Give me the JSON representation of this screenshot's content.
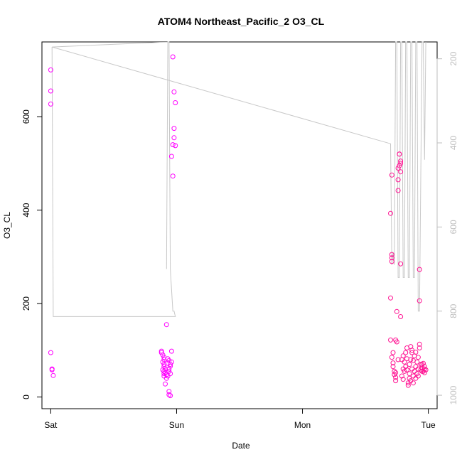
{
  "chart_data": {
    "type": "scatter",
    "title": "ATOM4 Northeast_Pacific_2 O3_CL",
    "xlabel": "Date",
    "ylabel": "O3_CL",
    "x_ticks": [
      "Sat",
      "Sun",
      "Mon",
      "Tue"
    ],
    "xlim": [
      -0.07,
      3.07
    ],
    "ylim": [
      -25,
      760
    ],
    "y_ticks": [
      0,
      200,
      400,
      600
    ],
    "y2_ticks": [
      200,
      400,
      600,
      800,
      1000
    ],
    "y2lim": [
      1032,
      160
    ],
    "y2_color": "#bebebe",
    "grid": false,
    "legend": "none",
    "series": [
      {
        "kind": "points",
        "color": "#ff00ff",
        "points": [
          [
            0.0,
            700
          ],
          [
            0.0,
            655
          ],
          [
            0.0,
            627
          ],
          [
            0.0,
            95
          ],
          [
            0.01,
            60
          ],
          [
            0.01,
            58
          ],
          [
            0.02,
            46
          ],
          [
            0.88,
            98
          ],
          [
            0.88,
            95
          ],
          [
            0.89,
            90
          ],
          [
            0.9,
            85
          ],
          [
            0.9,
            80
          ],
          [
            0.89,
            75
          ],
          [
            0.9,
            70
          ],
          [
            0.9,
            65
          ],
          [
            0.91,
            60
          ],
          [
            0.89,
            58
          ],
          [
            0.9,
            55
          ],
          [
            0.91,
            52
          ],
          [
            0.9,
            50
          ],
          [
            0.92,
            48
          ],
          [
            0.9,
            45
          ],
          [
            0.92,
            40
          ],
          [
            0.91,
            28
          ],
          [
            0.92,
            155
          ],
          [
            0.93,
            82
          ],
          [
            0.94,
            78
          ],
          [
            0.93,
            72
          ],
          [
            0.95,
            70
          ],
          [
            0.95,
            66
          ],
          [
            0.94,
            60
          ],
          [
            0.94,
            55
          ],
          [
            0.95,
            50
          ],
          [
            0.93,
            45
          ],
          [
            0.94,
            12
          ],
          [
            0.94,
            5
          ],
          [
            0.95,
            3
          ],
          [
            0.96,
            98
          ],
          [
            0.96,
            75
          ],
          [
            0.96,
            515
          ],
          [
            0.97,
            473
          ],
          [
            0.97,
            540
          ],
          [
            0.98,
            555
          ],
          [
            0.98,
            575
          ],
          [
            0.98,
            653
          ],
          [
            0.99,
            630
          ],
          [
            0.97,
            728
          ],
          [
            0.99,
            538
          ]
        ]
      },
      {
        "kind": "points",
        "color": "#ff1493",
        "points": [
          [
            2.7,
            393
          ],
          [
            2.71,
            475
          ],
          [
            2.7,
            212
          ],
          [
            2.71,
            305
          ],
          [
            2.71,
            298
          ],
          [
            2.71,
            290
          ],
          [
            2.7,
            122
          ],
          [
            2.71,
            85
          ],
          [
            2.72,
            95
          ],
          [
            2.72,
            65
          ],
          [
            2.73,
            55
          ],
          [
            2.73,
            48
          ],
          [
            2.74,
            42
          ],
          [
            2.74,
            52
          ],
          [
            2.74,
            122
          ],
          [
            2.75,
            118
          ],
          [
            2.75,
            183
          ],
          [
            2.76,
            442
          ],
          [
            2.76,
            465
          ],
          [
            2.76,
            490
          ],
          [
            2.77,
            495
          ],
          [
            2.77,
            520
          ],
          [
            2.77,
            520
          ],
          [
            2.78,
            505
          ],
          [
            2.78,
            500
          ],
          [
            2.78,
            482
          ],
          [
            2.78,
            285
          ],
          [
            2.78,
            172
          ],
          [
            2.79,
            80
          ],
          [
            2.79,
            45
          ],
          [
            2.8,
            60
          ],
          [
            2.8,
            38
          ],
          [
            2.81,
            55
          ],
          [
            2.81,
            75
          ],
          [
            2.82,
            95
          ],
          [
            2.82,
            65
          ],
          [
            2.83,
            82
          ],
          [
            2.83,
            58
          ],
          [
            2.84,
            30
          ],
          [
            2.84,
            25
          ],
          [
            2.85,
            50
          ],
          [
            2.85,
            70
          ],
          [
            2.86,
            108
          ],
          [
            2.86,
            80
          ],
          [
            2.86,
            35
          ],
          [
            2.87,
            95
          ],
          [
            2.87,
            60
          ],
          [
            2.88,
            78
          ],
          [
            2.88,
            45
          ],
          [
            2.89,
            55
          ],
          [
            2.89,
            88
          ],
          [
            2.9,
            65
          ],
          [
            2.9,
            40
          ],
          [
            2.91,
            75
          ],
          [
            2.91,
            50
          ],
          [
            2.92,
            60
          ],
          [
            2.92,
            85
          ],
          [
            2.93,
            113
          ],
          [
            2.93,
            105
          ],
          [
            2.94,
            70
          ],
          [
            2.94,
            58
          ],
          [
            2.95,
            62
          ],
          [
            2.95,
            55
          ],
          [
            2.96,
            72
          ],
          [
            2.96,
            55
          ],
          [
            2.97,
            65
          ],
          [
            2.97,
            52
          ],
          [
            2.98,
            58
          ],
          [
            2.93,
            273
          ],
          [
            2.93,
            206
          ],
          [
            2.72,
            73
          ],
          [
            2.74,
            35
          ],
          [
            2.76,
            80
          ],
          [
            2.8,
            88
          ],
          [
            2.83,
            105
          ],
          [
            2.85,
            40
          ],
          [
            2.88,
            30
          ],
          [
            2.9,
            96
          ],
          [
            2.92,
            45
          ],
          [
            2.95,
            70
          ],
          [
            2.97,
            60
          ],
          [
            2.87,
            100
          ]
        ]
      },
      {
        "kind": "line",
        "axis": "right",
        "color": "#c8c8c8",
        "points": [
          [
            0.01,
            172
          ],
          [
            0.02,
            813
          ],
          [
            0.99,
            813
          ],
          [
            0.98,
            800
          ],
          [
            0.97,
            800
          ],
          [
            0.95,
            700
          ],
          [
            0.94,
            160
          ],
          [
            0.93,
            160
          ],
          [
            0.92,
            700
          ],
          [
            0.92,
            700
          ],
          [
            0.93,
            160
          ],
          [
            0.01,
            172
          ],
          [
            2.7,
            402
          ],
          [
            2.71,
            690
          ],
          [
            2.72,
            660
          ],
          [
            2.73,
            690
          ],
          [
            2.74,
            160
          ],
          [
            2.75,
            160
          ],
          [
            2.76,
            720
          ],
          [
            2.77,
            720
          ],
          [
            2.78,
            160
          ],
          [
            2.79,
            160
          ],
          [
            2.8,
            720
          ],
          [
            2.81,
            720
          ],
          [
            2.82,
            160
          ],
          [
            2.83,
            160
          ],
          [
            2.84,
            720
          ],
          [
            2.85,
            720
          ],
          [
            2.86,
            160
          ],
          [
            2.87,
            160
          ],
          [
            2.88,
            720
          ],
          [
            2.89,
            720
          ],
          [
            2.9,
            160
          ],
          [
            2.91,
            160
          ],
          [
            2.92,
            800
          ],
          [
            2.93,
            800
          ],
          [
            2.95,
            160
          ],
          [
            2.96,
            160
          ],
          [
            2.97,
            440
          ],
          [
            2.98,
            160
          ]
        ]
      }
    ]
  }
}
